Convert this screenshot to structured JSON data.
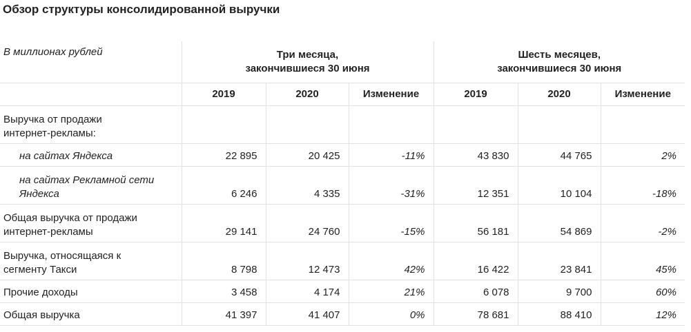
{
  "header": {
    "title": "Обзор структуры консолидированной выручки"
  },
  "table": {
    "unit_label": "В миллионах рублей",
    "groups": [
      {
        "lines": [
          "Три месяца,",
          "закончившиеся 30 июня"
        ]
      },
      {
        "lines": [
          "Шесть месяцев,",
          "закончившиеся 30 июня"
        ]
      }
    ],
    "columns": [
      "2019",
      "2020",
      "Изменение",
      "2019",
      "2020",
      "Изменение"
    ],
    "rows": [
      {
        "lines": [
          "Выручка от продажи",
          "интернет-рекламы:"
        ]
      },
      {
        "lines": [
          "на сайтах Яндекса"
        ],
        "cells": [
          "22 895",
          "20 425",
          "-11%",
          "43 830",
          "44 765",
          "2%"
        ]
      },
      {
        "lines": [
          "на сайтах Рекламной сети",
          "Яндекса"
        ],
        "cells": [
          "6 246",
          "4 335",
          "-31%",
          "12 351",
          "10 104",
          "-18%"
        ]
      },
      {
        "lines": [
          "Общая выручка от продажи",
          "интернет-рекламы"
        ],
        "cells": [
          "29 141",
          "24 760",
          "-15%",
          "56 181",
          "54 869",
          "-2%"
        ]
      },
      {
        "lines": [
          "Выручка, относящаяся к",
          "сегменту Такси"
        ],
        "cells": [
          "8 798",
          "12 473",
          "42%",
          "16 422",
          "23 841",
          "45%"
        ]
      },
      {
        "lines": [
          "Прочие доходы"
        ],
        "cells": [
          "3 458",
          "4 174",
          "21%",
          "6 078",
          "9 700",
          "60%"
        ]
      },
      {
        "lines": [
          "Общая выручка"
        ],
        "cells": [
          "41 397",
          "41 407",
          "0%",
          "78 681",
          "88 410",
          "12%"
        ]
      }
    ]
  }
}
